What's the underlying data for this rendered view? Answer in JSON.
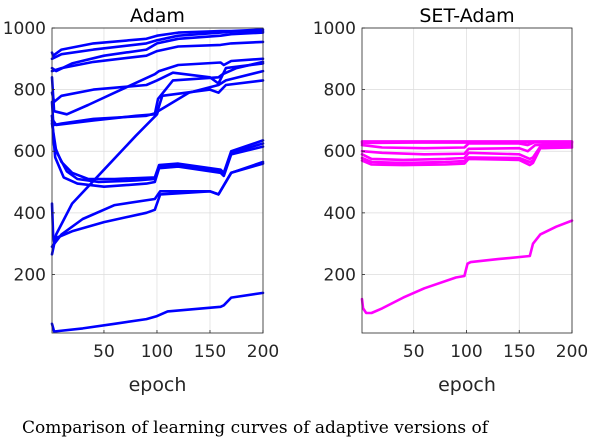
{
  "caption": "Comparison of learning curves of adaptive versions of",
  "chart_data": [
    {
      "type": "line",
      "title": "Adam",
      "xlabel": "epoch",
      "ylabel": "",
      "xlim": [
        1,
        200
      ],
      "ylim": [
        10,
        1000
      ],
      "xticks": [
        50,
        100,
        150,
        200
      ],
      "yticks": [
        200,
        400,
        600,
        800,
        1000
      ],
      "grid": true,
      "color": "#0000ff",
      "series": [
        {
          "x": [
            1,
            2,
            10,
            40,
            90,
            100,
            120,
            160,
            170,
            200
          ],
          "y": [
            920,
            910,
            930,
            950,
            965,
            975,
            985,
            990,
            990,
            995
          ]
        },
        {
          "x": [
            1,
            10,
            40,
            90,
            100,
            120,
            160,
            170,
            200
          ],
          "y": [
            900,
            915,
            930,
            950,
            960,
            975,
            985,
            988,
            990
          ]
        },
        {
          "x": [
            1,
            5,
            20,
            50,
            90,
            100,
            120,
            160,
            170,
            200
          ],
          "y": [
            870,
            860,
            885,
            910,
            930,
            950,
            965,
            975,
            980,
            985
          ]
        },
        {
          "x": [
            1,
            10,
            40,
            90,
            100,
            120,
            160,
            170,
            200
          ],
          "y": [
            860,
            870,
            890,
            910,
            925,
            940,
            945,
            950,
            955
          ]
        },
        {
          "x": [
            1,
            3,
            15,
            35,
            60,
            98,
            102,
            120,
            160,
            163,
            170,
            200
          ],
          "y": [
            840,
            730,
            720,
            750,
            790,
            850,
            860,
            880,
            888,
            880,
            893,
            900
          ]
        },
        {
          "x": [
            1,
            3,
            10,
            40,
            90,
            100,
            115,
            150,
            158,
            165,
            200
          ],
          "y": [
            790,
            760,
            780,
            800,
            815,
            830,
            855,
            840,
            820,
            870,
            885
          ]
        },
        {
          "x": [
            1,
            2,
            5,
            40,
            80,
            98,
            101,
            115,
            158,
            162,
            175,
            200
          ],
          "y": [
            760,
            700,
            685,
            700,
            715,
            720,
            770,
            830,
            840,
            850,
            870,
            890
          ]
        },
        {
          "x": [
            1,
            3,
            10,
            40,
            90,
            100,
            105,
            150,
            158,
            165,
            200
          ],
          "y": [
            715,
            685,
            690,
            705,
            715,
            725,
            780,
            800,
            790,
            815,
            830
          ]
        },
        {
          "x": [
            1,
            5,
            20,
            50,
            80,
            100,
            101,
            130,
            158,
            165,
            200
          ],
          "y": [
            265,
            330,
            430,
            540,
            650,
            720,
            730,
            790,
            815,
            830,
            860
          ]
        },
        {
          "x": [
            1,
            3,
            10,
            20,
            35,
            60,
            98,
            102,
            120,
            160,
            163,
            170,
            200
          ],
          "y": [
            715,
            620,
            565,
            530,
            510,
            510,
            515,
            555,
            560,
            540,
            530,
            600,
            635
          ]
        },
        {
          "x": [
            1,
            5,
            15,
            25,
            45,
            80,
            98,
            102,
            120,
            160,
            163,
            170,
            200
          ],
          "y": [
            690,
            600,
            535,
            510,
            500,
            505,
            510,
            550,
            555,
            535,
            525,
            595,
            625
          ]
        },
        {
          "x": [
            1,
            4,
            12,
            25,
            50,
            90,
            98,
            102,
            120,
            160,
            163,
            170,
            200
          ],
          "y": [
            700,
            580,
            515,
            495,
            485,
            495,
            500,
            545,
            550,
            530,
            520,
            590,
            615
          ]
        },
        {
          "x": [
            1,
            10,
            30,
            60,
            98,
            103,
            150,
            158,
            170,
            200
          ],
          "y": [
            290,
            330,
            380,
            425,
            445,
            470,
            470,
            460,
            530,
            560
          ]
        },
        {
          "x": [
            1,
            2,
            3,
            6,
            20,
            50,
            90,
            98,
            103,
            150,
            158,
            170,
            200
          ],
          "y": [
            430,
            330,
            305,
            320,
            340,
            370,
            400,
            410,
            460,
            470,
            460,
            530,
            565
          ]
        },
        {
          "x": [
            1,
            3,
            30,
            60,
            90,
            100,
            110,
            160,
            163,
            170,
            200
          ],
          "y": [
            40,
            15,
            25,
            40,
            55,
            65,
            80,
            95,
            100,
            125,
            140
          ]
        }
      ]
    },
    {
      "type": "line",
      "title": "SET-Adam",
      "xlabel": "epoch",
      "ylabel": "",
      "xlim": [
        1,
        200
      ],
      "ylim": [
        10,
        1000
      ],
      "xticks": [
        50,
        100,
        150,
        200
      ],
      "yticks": [
        200,
        400,
        600,
        800,
        1000
      ],
      "grid": true,
      "color": "#ff00ff",
      "series": [
        {
          "x": [
            1,
            50,
            100,
            150,
            200
          ],
          "y": [
            632,
            632,
            632,
            632,
            632
          ]
        },
        {
          "x": [
            1,
            50,
            100,
            150,
            200
          ],
          "y": [
            627,
            628,
            628,
            629,
            630
          ]
        },
        {
          "x": [
            1,
            20,
            60,
            98,
            102,
            150,
            158,
            165,
            200
          ],
          "y": [
            620,
            612,
            610,
            612,
            625,
            625,
            620,
            630,
            628
          ]
        },
        {
          "x": [
            1,
            20,
            60,
            98,
            102,
            150,
            158,
            165,
            200
          ],
          "y": [
            600,
            595,
            590,
            592,
            608,
            610,
            600,
            620,
            624
          ]
        },
        {
          "x": [
            1,
            10,
            40,
            80,
            98,
            102,
            150,
            160,
            163,
            170,
            200
          ],
          "y": [
            590,
            575,
            572,
            575,
            578,
            595,
            590,
            575,
            580,
            615,
            620
          ]
        },
        {
          "x": [
            1,
            10,
            40,
            80,
            98,
            102,
            150,
            160,
            163,
            170,
            200
          ],
          "y": [
            578,
            565,
            562,
            565,
            568,
            580,
            578,
            565,
            570,
            610,
            616
          ]
        },
        {
          "x": [
            1,
            10,
            40,
            80,
            98,
            102,
            150,
            160,
            163,
            170,
            200
          ],
          "y": [
            570,
            557,
            555,
            557,
            560,
            575,
            572,
            555,
            562,
            610,
            612
          ]
        },
        {
          "x": [
            1,
            2,
            5,
            10,
            20,
            40,
            60,
            90,
            98,
            101,
            104,
            130,
            160,
            163,
            170,
            185,
            200
          ],
          "y": [
            120,
            90,
            75,
            75,
            90,
            125,
            155,
            190,
            195,
            235,
            240,
            250,
            260,
            300,
            330,
            355,
            375
          ]
        }
      ]
    }
  ]
}
